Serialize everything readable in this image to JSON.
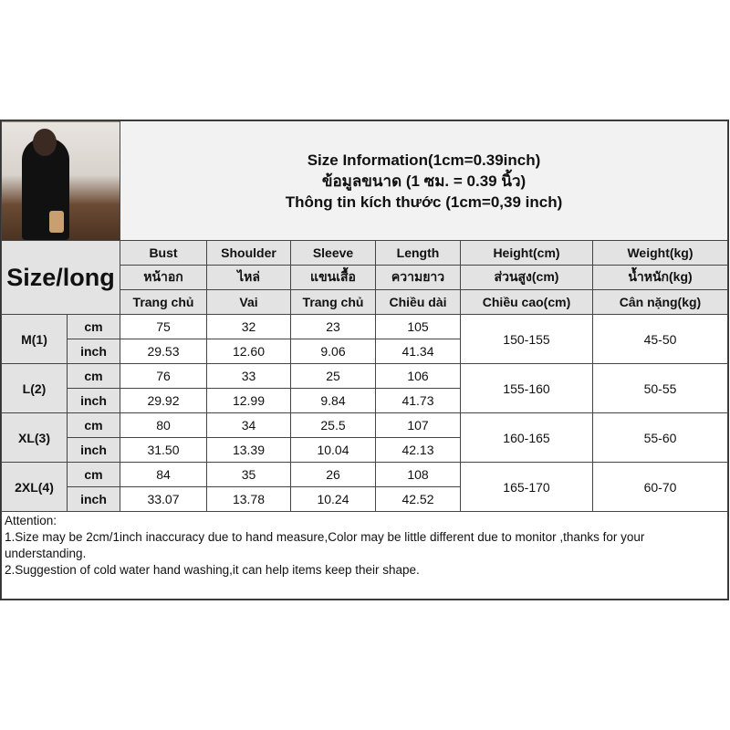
{
  "title": {
    "line1": "Size Information(1cm=0.39inch)",
    "line2": "ข้อมูลขนาด (1 ซม. = 0.39 นิ้ว)",
    "line3": "Thông tin kích thước (1cm=0,39 inch)"
  },
  "size_label": "Size/long",
  "headers": [
    {
      "en": "Bust",
      "th": "หน้าอก",
      "vi": "Trang chủ"
    },
    {
      "en": "Shoulder",
      "th": "ไหล่",
      "vi": "Vai"
    },
    {
      "en": "Sleeve",
      "th": "แขนเสื้อ",
      "vi": "Trang chủ"
    },
    {
      "en": "Length",
      "th": "ความยาว",
      "vi": "Chiều dài"
    },
    {
      "en": "Height(cm)",
      "th": "ส่วนสูง(cm)",
      "vi": "Chiều cao(cm)"
    },
    {
      "en": "Weight(kg)",
      "th": "น้ำหนัก(kg)",
      "vi": "Cân nặng(kg)"
    }
  ],
  "units": {
    "cm": "cm",
    "inch": "inch"
  },
  "sizes": [
    {
      "name": "M(1)",
      "cm": [
        "75",
        "32",
        "23",
        "105"
      ],
      "inch": [
        "29.53",
        "12.60",
        "9.06",
        "41.34"
      ],
      "height": "150-155",
      "weight": "45-50"
    },
    {
      "name": "L(2)",
      "cm": [
        "76",
        "33",
        "25",
        "106"
      ],
      "inch": [
        "29.92",
        "12.99",
        "9.84",
        "41.73"
      ],
      "height": "155-160",
      "weight": "50-55"
    },
    {
      "name": "XL(3)",
      "cm": [
        "80",
        "34",
        "25.5",
        "107"
      ],
      "inch": [
        "31.50",
        "13.39",
        "10.04",
        "42.13"
      ],
      "height": "160-165",
      "weight": "55-60"
    },
    {
      "name": "2XL(4)",
      "cm": [
        "84",
        "35",
        "26",
        "108"
      ],
      "inch": [
        "33.07",
        "13.78",
        "10.24",
        "42.52"
      ],
      "height": "165-170",
      "weight": "60-70"
    }
  ],
  "attention": {
    "heading": "Attention:",
    "line1": "1.Size may be 2cm/1inch inaccuracy due to hand measure,Color may be little different due to monitor ,thanks for your understanding.",
    "line2": "2.Suggestion of cold water hand washing,it can help items keep their shape."
  }
}
